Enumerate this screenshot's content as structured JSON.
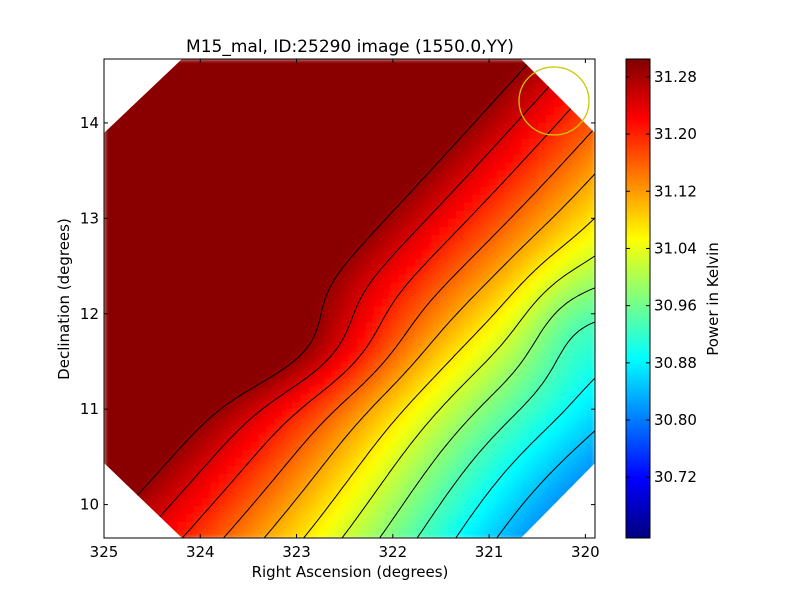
{
  "chart_data": {
    "type": "heatmap",
    "title": "M15_mal, ID:25290 image (1550.0,YY)",
    "xlabel": "Right Ascension (degrees)",
    "ylabel": "Declination (degrees)",
    "colorbar_label": "Power in Kelvin",
    "xlim": [
      325.0,
      319.9
    ],
    "ylim": [
      9.65,
      14.67
    ],
    "x_ticks": [
      325,
      324,
      323,
      322,
      321,
      320
    ],
    "x_tick_labels": [
      "325",
      "324",
      "323",
      "322",
      "321",
      "320"
    ],
    "y_ticks": [
      10,
      11,
      12,
      13,
      14
    ],
    "y_tick_labels": [
      "10",
      "11",
      "12",
      "13",
      "14"
    ],
    "colorbar_range": [
      30.635,
      31.305
    ],
    "colorbar_ticks": [
      30.72,
      30.8,
      30.88,
      30.96,
      31.04,
      31.12,
      31.2,
      31.28
    ],
    "colorbar_tick_labels": [
      "30.72",
      "30.80",
      "30.88",
      "30.96",
      "31.04",
      "31.12",
      "31.20",
      "31.28"
    ],
    "colormap": "jet",
    "field_shape": "octagon",
    "gradient": "warm (high) toward upper-left, cold (low) toward lower-right",
    "beam_marker": {
      "shape": "circle",
      "color": "#c8c800"
    },
    "contour_color": "#000000",
    "grid": false
  }
}
